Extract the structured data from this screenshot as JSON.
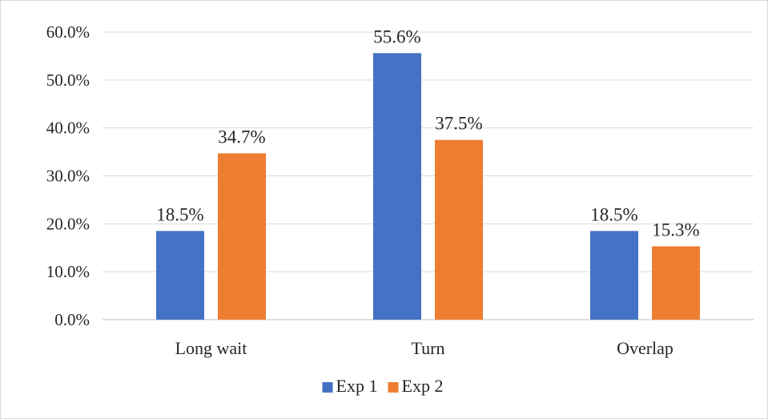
{
  "chart_data": {
    "type": "bar",
    "categories": [
      "Long wait",
      "Turn",
      "Overlap"
    ],
    "series": [
      {
        "name": "Exp 1",
        "values": [
          18.5,
          55.6,
          18.5
        ],
        "labels": [
          "18.5%",
          "55.6%",
          "18.5%"
        ],
        "color": "#4472c4"
      },
      {
        "name": "Exp 2",
        "values": [
          34.7,
          37.5,
          15.3
        ],
        "labels": [
          "34.7%",
          "37.5%",
          "15.3%"
        ],
        "color": "#ed7d31"
      }
    ],
    "ylim": [
      0,
      60
    ],
    "yticks": [
      0,
      10,
      20,
      30,
      40,
      50,
      60
    ],
    "ytick_labels": [
      "0.0%",
      "10.0%",
      "20.0%",
      "30.0%",
      "40.0%",
      "50.0%",
      "60.0%"
    ],
    "grid": true,
    "legend": "bottom",
    "gridline_color": "#d9d9d9",
    "axis_color": "#bfbfbf"
  }
}
